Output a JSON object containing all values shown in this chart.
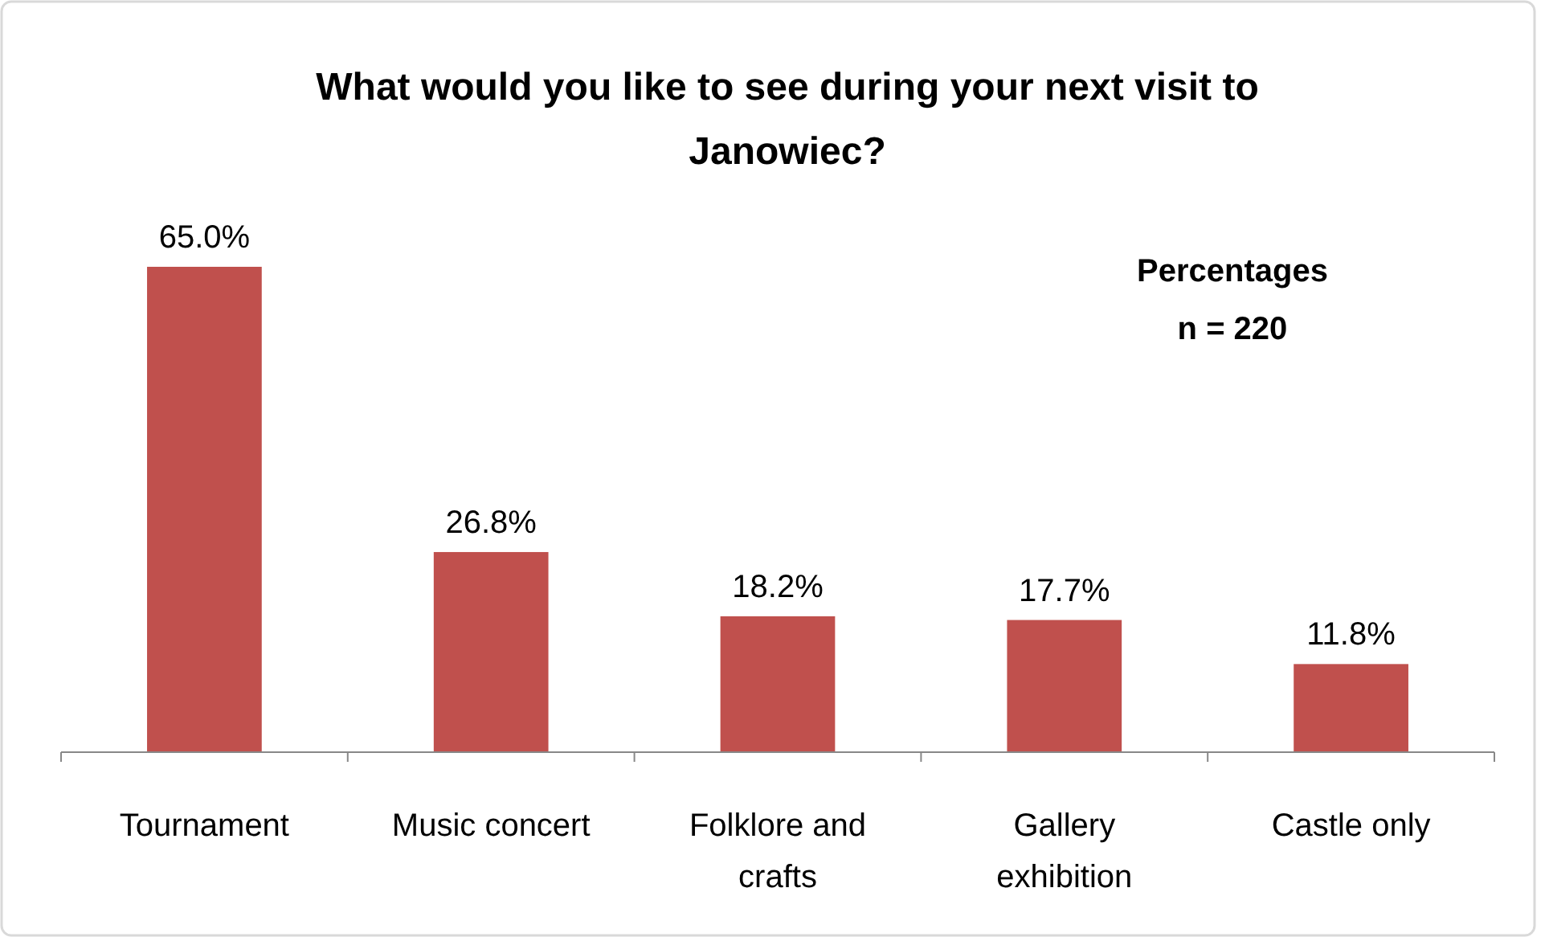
{
  "chart_data": {
    "type": "bar",
    "title": "What would you like to see during your next visit to Janowiec?",
    "categories": [
      "Tournament",
      "Music concert",
      "Folklore and crafts",
      "Gallery exhibition",
      "Castle only"
    ],
    "values": [
      65.0,
      26.8,
      18.2,
      17.7,
      11.8
    ],
    "value_labels": [
      "65.0%",
      "26.8%",
      "18.2%",
      "17.7%",
      "11.8%"
    ],
    "color": "#c0504d",
    "annotations": [
      "Percentages",
      "n = 220"
    ]
  }
}
